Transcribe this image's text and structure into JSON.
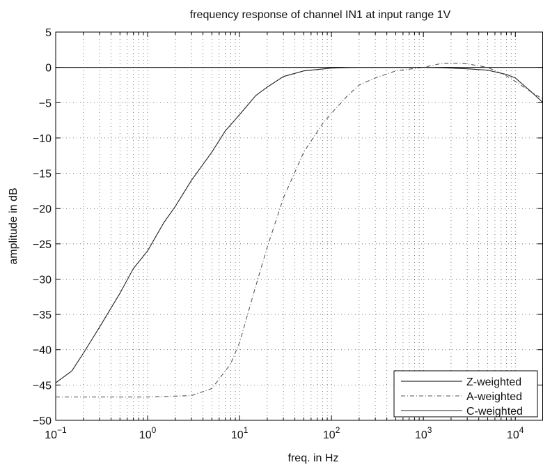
{
  "chart_data": {
    "type": "line",
    "title": "frequency response of channel IN1 at input range 1V",
    "xlabel": "freq. in Hz",
    "ylabel": "amplitude in dB",
    "xscale": "log",
    "xlim": [
      0.1,
      20000
    ],
    "ylim": [
      -50,
      5
    ],
    "grid": "on (major and minor, dotted)",
    "legend_position": "bottom-right",
    "x_ticks": [
      {
        "value": 0.1,
        "base": "10",
        "exp": "-1"
      },
      {
        "value": 1,
        "base": "10",
        "exp": "0"
      },
      {
        "value": 10,
        "base": "10",
        "exp": "1"
      },
      {
        "value": 100,
        "base": "10",
        "exp": "2"
      },
      {
        "value": 1000,
        "base": "10",
        "exp": "3"
      },
      {
        "value": 10000,
        "base": "10",
        "exp": "4"
      }
    ],
    "y_ticks": [
      5,
      0,
      -5,
      -10,
      -15,
      -20,
      -25,
      -30,
      -35,
      -40,
      -45,
      -50
    ],
    "series": [
      {
        "name": "Z-weighted",
        "color": "#000000",
        "dash": "solid",
        "points": [
          [
            0.1,
            0
          ],
          [
            20000,
            0
          ]
        ]
      },
      {
        "name": "A-weighted",
        "color": "#555555",
        "dash": "dashdot",
        "points": [
          [
            0.1,
            -46.7
          ],
          [
            1,
            -46.7
          ],
          [
            3,
            -46.5
          ],
          [
            5,
            -45.5
          ],
          [
            8,
            -42
          ],
          [
            10,
            -39
          ],
          [
            15,
            -31
          ],
          [
            20,
            -25.5
          ],
          [
            30,
            -18.5
          ],
          [
            50,
            -12
          ],
          [
            80,
            -8
          ],
          [
            100,
            -6.5
          ],
          [
            150,
            -4
          ],
          [
            200,
            -2.5
          ],
          [
            300,
            -1.5
          ],
          [
            500,
            -0.5
          ],
          [
            1000,
            0
          ],
          [
            1500,
            0.5
          ],
          [
            2000,
            0.6
          ],
          [
            3000,
            0.5
          ],
          [
            5000,
            0
          ],
          [
            8000,
            -1.2
          ],
          [
            10000,
            -2
          ],
          [
            15000,
            -3.5
          ],
          [
            20000,
            -4.5
          ]
        ]
      },
      {
        "name": "C-weighted",
        "color": "#222222",
        "dash": "solid",
        "points": [
          [
            0.1,
            -44.7
          ],
          [
            0.15,
            -43
          ],
          [
            0.2,
            -40.5
          ],
          [
            0.3,
            -36.8
          ],
          [
            0.5,
            -32
          ],
          [
            0.7,
            -28.5
          ],
          [
            1,
            -26
          ],
          [
            1.5,
            -22
          ],
          [
            2,
            -19.7
          ],
          [
            3,
            -16
          ],
          [
            5,
            -12
          ],
          [
            7,
            -9
          ],
          [
            10,
            -6.7
          ],
          [
            15,
            -4
          ],
          [
            20,
            -2.8
          ],
          [
            30,
            -1.3
          ],
          [
            50,
            -0.5
          ],
          [
            100,
            -0.1
          ],
          [
            200,
            0
          ],
          [
            500,
            0
          ],
          [
            1000,
            0
          ],
          [
            2000,
            -0.1
          ],
          [
            3000,
            -0.2
          ],
          [
            5000,
            -0.4
          ],
          [
            8000,
            -1
          ],
          [
            10000,
            -1.5
          ],
          [
            15000,
            -3.5
          ],
          [
            20000,
            -5
          ]
        ]
      }
    ]
  }
}
